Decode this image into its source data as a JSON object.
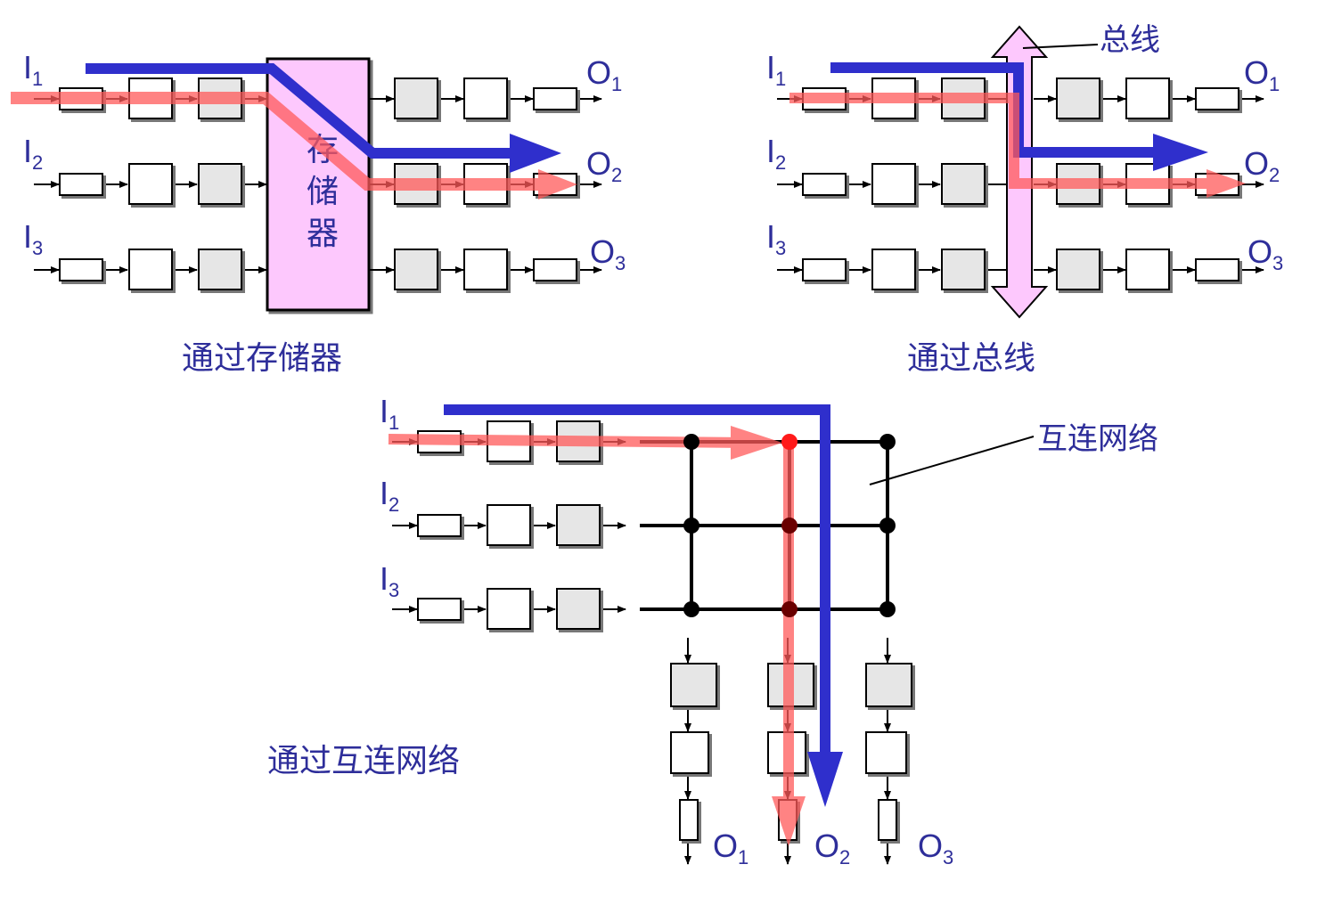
{
  "panels": {
    "memory": {
      "caption": "通过存储器",
      "block_chars": [
        "存",
        "储",
        "器"
      ],
      "inputs": [
        "I",
        "I",
        "I"
      ],
      "input_subs": [
        "1",
        "2",
        "3"
      ],
      "outputs": [
        "O",
        "O",
        "O"
      ],
      "output_subs": [
        "1",
        "2",
        "3"
      ]
    },
    "bus": {
      "caption": "通过总线",
      "bus_label": "总线",
      "inputs": [
        "I",
        "I",
        "I"
      ],
      "input_subs": [
        "1",
        "2",
        "3"
      ],
      "outputs": [
        "O",
        "O",
        "O"
      ],
      "output_subs": [
        "1",
        "2",
        "3"
      ]
    },
    "network": {
      "caption": "通过互连网络",
      "network_label": "互连网络",
      "inputs": [
        "I",
        "I",
        "I"
      ],
      "input_subs": [
        "1",
        "2",
        "3"
      ],
      "outputs": [
        "O",
        "O",
        "O"
      ],
      "output_subs": [
        "1",
        "2",
        "3"
      ]
    }
  },
  "colors": {
    "label": "#2e2e9a",
    "blue_path": "#2f2fcc",
    "red_path": "#ff5a5a",
    "memory_fill": "#fdc8fd",
    "stage_gray": "#e6e6e6"
  }
}
